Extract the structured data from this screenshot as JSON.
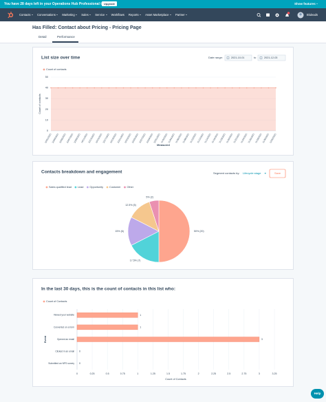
{
  "banner": {
    "text": "You have 28 days left in your Operations Hub Professional trial.",
    "button": "Upgrade",
    "link": "Show features"
  },
  "nav": {
    "items": [
      "Contacts",
      "Conversations",
      "Marketing",
      "Sales",
      "Service",
      "Workflows",
      "Reports",
      "Asset Marketplace",
      "Partner"
    ],
    "account": "Bluleads"
  },
  "header": {
    "title": "Has Filled: Contact about Pricing - Pricing Page",
    "tabs": [
      "Detail",
      "Performance"
    ]
  },
  "date_range": {
    "label": "Date range:",
    "from": "2021-10-01",
    "to_label": "to",
    "to": "2021-12-03"
  },
  "segment": {
    "label": "Segment contacts by:",
    "value": "Lifecycle stage",
    "save": "Save"
  },
  "help": "Help",
  "chart_data": [
    {
      "type": "line",
      "title": "List size over time",
      "x": [
        "10/01/2021",
        "10/03/2021",
        "10/05/2021",
        "10/07/2021",
        "10/09/2021",
        "10/11/2021",
        "10/13/2021",
        "10/15/2021",
        "10/17/2021",
        "10/19/2021",
        "10/21/2021",
        "10/23/2021",
        "10/25/2021",
        "10/27/2021",
        "10/29/2021",
        "10/31/2021",
        "11/02/2021",
        "11/04/2021",
        "11/06/2021",
        "11/08/2021",
        "11/10/2021",
        "11/12/2021",
        "11/14/2021",
        "11/16/2021",
        "11/18/2021",
        "11/20/2021",
        "11/22/2021",
        "11/24/2021",
        "11/26/2021",
        "11/28/2021",
        "11/30/2021",
        "12/02/2021"
      ],
      "series": [
        {
          "name": "Count of contacts",
          "color": "#f5a492",
          "values": [
            40,
            40,
            40,
            40,
            40,
            40,
            40,
            40,
            40,
            40,
            40,
            40,
            40,
            40,
            40,
            40,
            40,
            40,
            40,
            40,
            40,
            40,
            40,
            40,
            40,
            40,
            40,
            40,
            40,
            40,
            40,
            40
          ]
        }
      ],
      "ylim": [
        0,
        50
      ],
      "yticks": [
        0,
        10,
        20,
        30,
        40,
        50
      ],
      "xlabel": "Measured",
      "ylabel": "Count of contacts",
      "grid": true,
      "legend": "top-left",
      "area": true
    },
    {
      "type": "pie",
      "title": "Contacts breakdown and engagement",
      "categories": [
        "Sales qualified lead",
        "Lead",
        "Opportunity",
        "Customer",
        "Other"
      ],
      "values": [
        20,
        7,
        6,
        5,
        2
      ],
      "value_labels": [
        "50% (20)",
        "17.5% (7)",
        "15% (6)",
        "12.5% (5)",
        "5% (2)"
      ],
      "colors": [
        "#fea58e",
        "#51d3d9",
        "#bda9ea",
        "#f5c78e",
        "#ea90b1"
      ],
      "legend": "top-left"
    },
    {
      "type": "hbar",
      "title": "In the last 30 days, this is the count of contacts in this list who:",
      "categories": [
        "Viewed your website",
        "Converted on a form",
        "Opened an email",
        "Clicked in an email",
        "Submitted an NPS survey"
      ],
      "series": [
        {
          "name": "Count of Contacts",
          "color": "#fea58e",
          "values": [
            1,
            1,
            3,
            0,
            0
          ]
        }
      ],
      "xlim": [
        0,
        3.25
      ],
      "xticks": [
        0,
        0.25,
        0.5,
        0.75,
        1,
        1.25,
        1.5,
        1.75,
        2,
        2.25,
        2.5,
        2.75,
        3,
        3.25
      ],
      "xlabel": "Count of Contacts",
      "ylabel": "Event",
      "grid": true,
      "legend": "top-left"
    }
  ]
}
